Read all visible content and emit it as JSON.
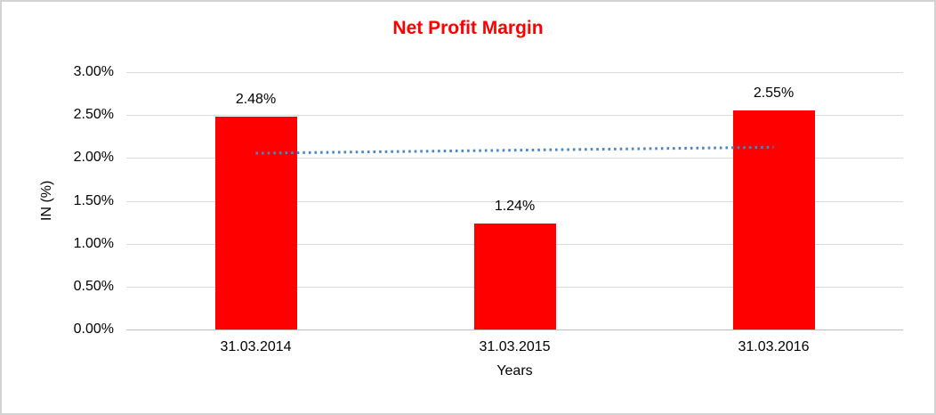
{
  "window": {
    "background": "#ffffff",
    "frame_border_color": "#d3d3d3"
  },
  "chart_data": {
    "type": "bar",
    "title": "Net Profit Margin",
    "title_color": "#ff0000",
    "xlabel": "Years",
    "ylabel": "IN (%)",
    "categories": [
      "31.03.2014",
      "31.03.2015",
      "31.03.2016"
    ],
    "values": [
      2.48,
      1.24,
      2.55
    ],
    "data_labels": [
      "2.48%",
      "1.24%",
      "2.55%"
    ],
    "y_tick_labels": [
      "0.00%",
      "0.50%",
      "1.00%",
      "1.50%",
      "2.00%",
      "2.50%",
      "3.00%"
    ],
    "y_tick_values": [
      0,
      0.5,
      1.0,
      1.5,
      2.0,
      2.5,
      3.0
    ],
    "ylim": [
      0,
      3.0
    ],
    "bar_color": "#ff0000",
    "gridline_color": "#d9d9d9",
    "axis_line_color": "#bfbfbf",
    "text_color": "#000000",
    "grid": "horizontal",
    "legend": "none",
    "trendline": {
      "type": "linear",
      "style": "dotted",
      "color": "#4a86c5"
    }
  }
}
